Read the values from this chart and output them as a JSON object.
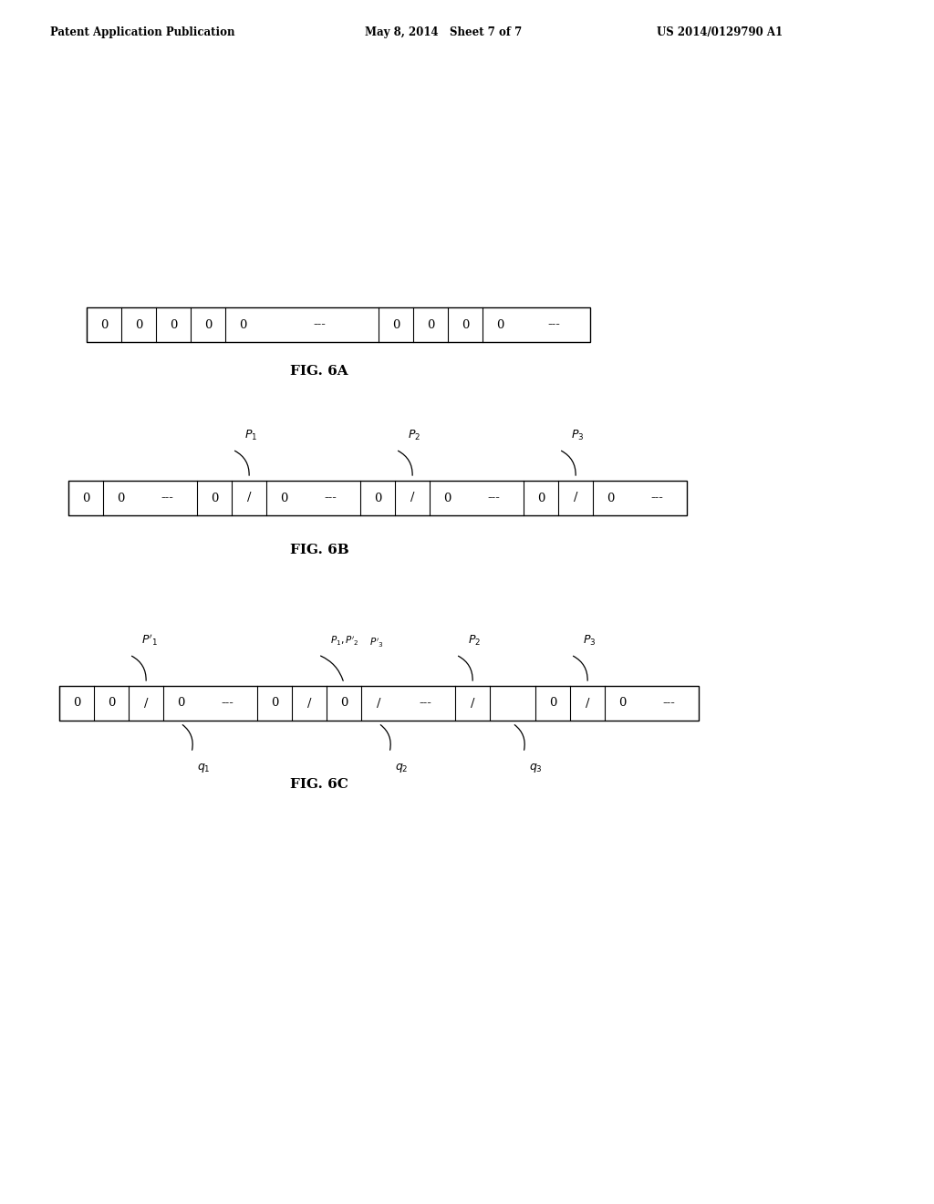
{
  "background_color": "#ffffff",
  "header_left": "Patent Application Publication",
  "header_mid": "May 8, 2014   Sheet 7 of 7",
  "header_right": "US 2014/0129790 A1",
  "fig6a_label": "FIG. 6A",
  "fig6b_label": "FIG. 6B",
  "fig6c_label": "FIG. 6C",
  "fig6a_cells": [
    "0",
    "0",
    "0",
    "0",
    "0",
    "---",
    "0",
    "0",
    "0",
    "0",
    "---"
  ],
  "fig6b_cells": [
    "0",
    "0",
    "---",
    "0",
    "/",
    "0",
    "---",
    "0",
    "/",
    "0",
    "---",
    "0",
    "/",
    "0",
    "---"
  ],
  "fig6c_cells": [
    "0",
    "0",
    "/",
    "0",
    "---",
    "0",
    "/",
    "0",
    "/",
    "---",
    "/",
    "",
    "0",
    "/",
    "0",
    "---"
  ]
}
